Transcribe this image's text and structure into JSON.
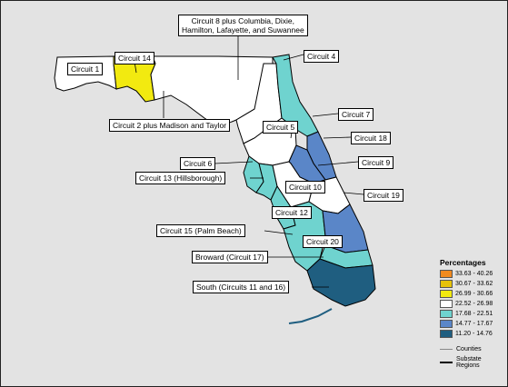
{
  "labels": {
    "circuit8": "Circuit 8 plus Columbia, Dixie,\nHamilton, Lafayette, and Suwannee",
    "circuit1": "Circuit 1",
    "circuit14": "Circuit 14",
    "circuit4": "Circuit 4",
    "circuit2": "Circuit 2 plus Madison and Taylor",
    "circuit7": "Circuit 7",
    "circuit5": "Circuit 5",
    "circuit18": "Circuit 18",
    "circuit6": "Circuit 6",
    "circuit9": "Circuit 9",
    "circuit13": "Circuit 13 (Hillsborough)",
    "circuit10": "Circuit 10",
    "circuit19": "Circuit 19",
    "circuit12": "Circuit 12",
    "circuit15": "Circuit 15 (Palm Beach)",
    "circuit20": "Circuit 20",
    "broward": "Broward (Circuit 17)",
    "south": "South (Circuits 11 and 16)"
  },
  "legend": {
    "title": "Percentages",
    "items": [
      {
        "label": "33.63 - 40.26",
        "color": "#f08a1e"
      },
      {
        "label": "30.67 - 33.62",
        "color": "#e6c20a"
      },
      {
        "label": "26.99 - 30.66",
        "color": "#f2ea10"
      },
      {
        "label": "22.52 - 26.98",
        "color": "#ffffff"
      },
      {
        "label": "17.68 - 22.51",
        "color": "#6fd3cf"
      },
      {
        "label": "14.77 - 17.67",
        "color": "#5a86c8"
      },
      {
        "label": "11.20 - 14.76",
        "color": "#1f5e80"
      }
    ],
    "counties_label": "Counties",
    "substate_label": "Substate\nRegions"
  }
}
